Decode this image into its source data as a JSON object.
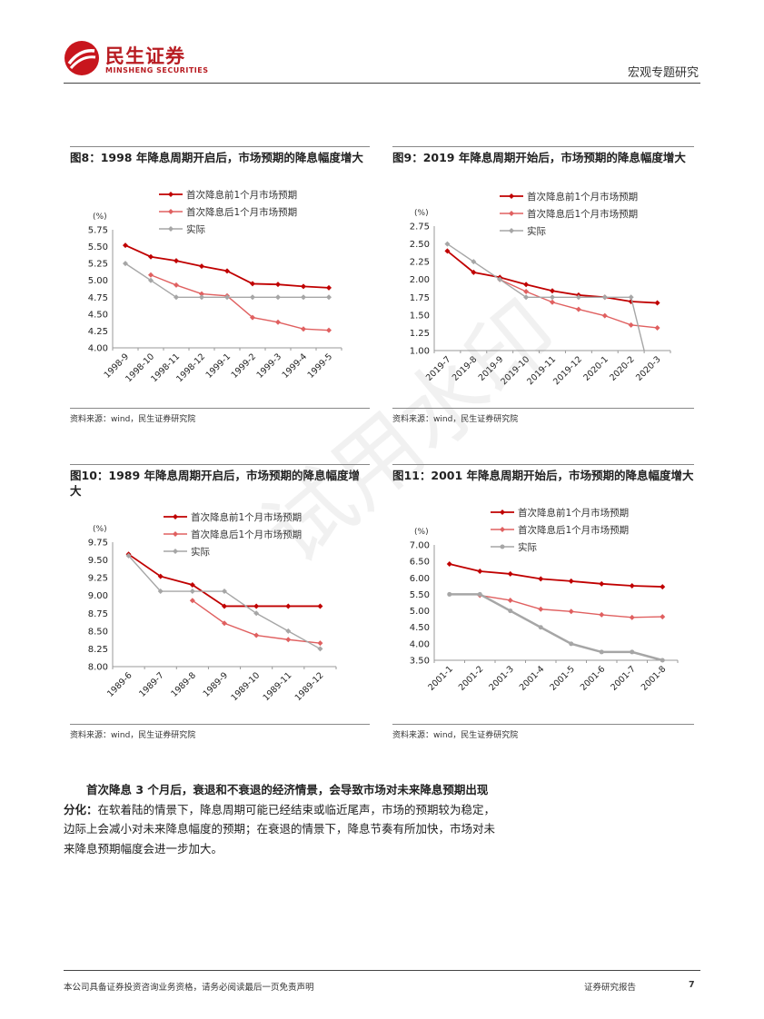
{
  "header": {
    "logo_cn": "民生证券",
    "logo_en": "MINSHENG SECURITIES",
    "right": "宏观专题研究"
  },
  "figures": [
    {
      "title": "图8：1998 年降息周期开启后，市场预期的降息幅度增大",
      "source": "资料来源：wind，民生证券研究院",
      "chart_data": {
        "type": "line",
        "ylabel": "(%)",
        "ylim": [
          4.0,
          5.75
        ],
        "yticks": [
          "5.75",
          "5.50",
          "5.25",
          "5.00",
          "4.75",
          "4.50",
          "4.25",
          "4.00"
        ],
        "categories": [
          "1998-9",
          "1998-10",
          "1998-11",
          "1998-12",
          "1999-1",
          "1999-2",
          "1999-3",
          "1999-4",
          "1999-5"
        ],
        "series": [
          {
            "name": "首次降息前1个月市场预期",
            "color": "#c00000",
            "values": [
              5.52,
              5.35,
              5.29,
              5.21,
              5.14,
              4.95,
              4.94,
              4.91,
              4.89
            ]
          },
          {
            "name": "首次降息后1个月市场预期",
            "color": "#e06060",
            "values": [
              null,
              5.08,
              4.93,
              4.8,
              4.77,
              4.45,
              4.38,
              4.28,
              4.26
            ]
          },
          {
            "name": "实际",
            "color": "#a6a6a6",
            "values": [
              5.25,
              5.0,
              4.75,
              4.75,
              4.75,
              4.75,
              4.75,
              4.75,
              4.75
            ]
          }
        ]
      }
    },
    {
      "title": "图9：2019 年降息周期开始后，市场预期的降息幅度增大",
      "source": "资料来源：wind，民生证券研究院",
      "chart_data": {
        "type": "line",
        "ylabel": "(%)",
        "ylim": [
          1.0,
          2.75
        ],
        "yticks": [
          "2.75",
          "2.50",
          "2.25",
          "2.00",
          "1.75",
          "1.50",
          "1.25",
          "1.00"
        ],
        "categories": [
          "2019-7",
          "2019-8",
          "2019-9",
          "2019-10",
          "2019-11",
          "2019-12",
          "2020-1",
          "2020-2",
          "2020-3"
        ],
        "series": [
          {
            "name": "首次降息前1个月市场预期",
            "color": "#c00000",
            "values": [
              2.4,
              2.1,
              2.03,
              1.93,
              1.84,
              1.78,
              1.75,
              1.69,
              1.67
            ]
          },
          {
            "name": "首次降息后1个月市场预期",
            "color": "#e06060",
            "values": [
              null,
              null,
              2.0,
              1.83,
              1.68,
              1.58,
              1.49,
              1.36,
              1.32
            ]
          },
          {
            "name": "实际",
            "color": "#a6a6a6",
            "values": [
              2.5,
              2.25,
              2.0,
              1.75,
              1.75,
              1.75,
              1.75,
              1.75,
              0.25
            ]
          }
        ]
      }
    },
    {
      "title": "图10：1989 年降息周期开启后，市场预期的降息幅度增大",
      "source": "资料来源：wind，民生证券研究院",
      "chart_data": {
        "type": "line",
        "ylabel": "(%)",
        "ylim": [
          8.0,
          9.75
        ],
        "yticks": [
          "9.75",
          "9.50",
          "9.25",
          "9.00",
          "8.75",
          "8.50",
          "8.25",
          "8.00"
        ],
        "categories": [
          "1989-6",
          "1989-7",
          "1989-8",
          "1989-9",
          "1989-10",
          "1989-11",
          "1989-12"
        ],
        "series": [
          {
            "name": "首次降息前1个月市场预期",
            "color": "#c00000",
            "values": [
              9.58,
              9.27,
              9.15,
              8.85,
              8.85,
              8.85,
              8.85
            ]
          },
          {
            "name": "首次降息后1个月市场预期",
            "color": "#e06060",
            "values": [
              null,
              null,
              8.93,
              8.61,
              8.44,
              8.38,
              8.33
            ]
          },
          {
            "name": "实际",
            "color": "#a6a6a6",
            "values": [
              9.56,
              9.06,
              9.06,
              9.06,
              8.75,
              8.5,
              8.25
            ]
          }
        ]
      }
    },
    {
      "title": "图11：2001 年降息周期开始后，市场预期的降息幅度增大",
      "source": "资料来源：wind，民生证券研究院",
      "chart_data": {
        "type": "line",
        "ylabel": "(%)",
        "ylim": [
          3.5,
          7.0
        ],
        "yticks": [
          "7.00",
          "6.50",
          "6.00",
          "5.50",
          "5.00",
          "4.50",
          "4.00",
          "3.50"
        ],
        "categories": [
          "2001-1",
          "2001-2",
          "2001-3",
          "2001-4",
          "2001-5",
          "2001-6",
          "2001-7",
          "2001-8"
        ],
        "series": [
          {
            "name": "首次降息前1个月市场预期",
            "color": "#c00000",
            "values": [
              6.42,
              6.2,
              6.12,
              5.97,
              5.9,
              5.82,
              5.76,
              5.73
            ]
          },
          {
            "name": "首次降息后1个月市场预期",
            "color": "#e06060",
            "values": [
              null,
              5.47,
              5.32,
              5.05,
              4.98,
              4.88,
              4.8,
              4.82
            ]
          },
          {
            "name": "实际",
            "color": "#a6a6a6",
            "values": [
              5.5,
              5.5,
              5.0,
              4.5,
              4.0,
              3.75,
              3.75,
              3.5
            ]
          }
        ]
      }
    }
  ],
  "body": {
    "bold_text": "首次降息 3 个月后，衰退和不衰退的经济情景，会导致市场对未来降息预期出现分化：",
    "normal_text": "在软着陆的情景下，降息周期可能已经结束或临近尾声，市场的预期较为稳定，边际上会减小对未来降息幅度的预期；在衰退的情景下，降息节奏有所加快，市场对未来降息预期幅度会进一步加大。"
  },
  "footer": {
    "left": "本公司具备证券投资咨询业务资格，请务必阅读最后一页免责声明",
    "middle": "证券研究报告",
    "page": "7"
  },
  "watermark": "试用水印"
}
